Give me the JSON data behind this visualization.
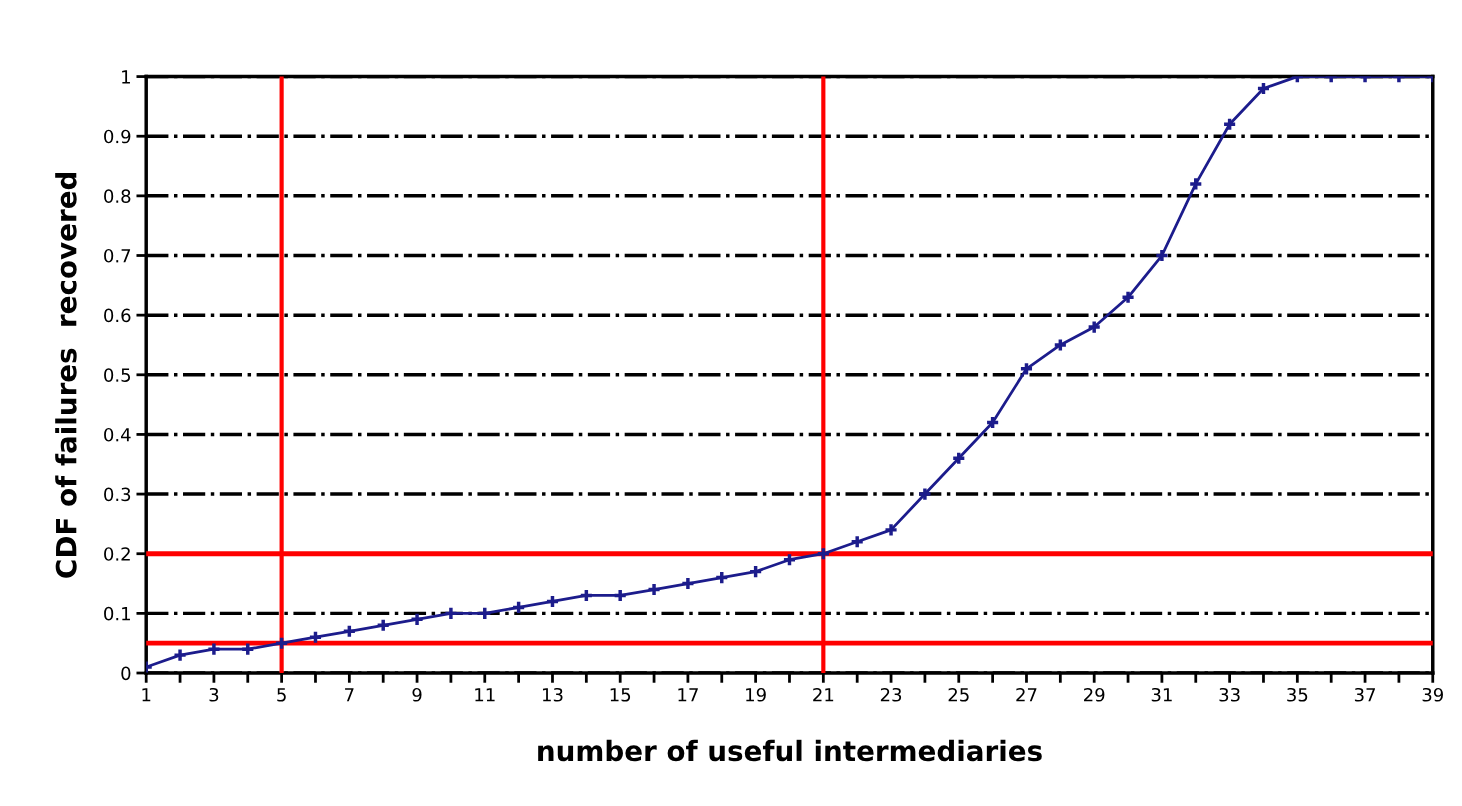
{
  "chart_data": {
    "type": "line",
    "xlabel": "number of useful intermediaries",
    "ylabel": "CDF of failures  recovered",
    "categories": [
      "1",
      null,
      "3",
      null,
      "5",
      null,
      "7",
      null,
      "9",
      null,
      "11",
      null,
      "13",
      null,
      "15",
      null,
      "17",
      null,
      "19",
      null,
      "21",
      null,
      "23",
      null,
      "25",
      null,
      "27",
      null,
      "29",
      null,
      "31",
      null,
      "33",
      null,
      "35",
      null,
      "37",
      null,
      "39"
    ],
    "series": [
      {
        "color": "#1c1c8c",
        "values": [
          0.01,
          0.03,
          0.04,
          0.04,
          0.05,
          0.06,
          0.07,
          0.08,
          0.09,
          0.1,
          0.1,
          0.11,
          0.12,
          0.13,
          0.13,
          0.14,
          0.15,
          0.16,
          0.17,
          0.19,
          0.2,
          0.22,
          0.24,
          0.3,
          0.36,
          0.42,
          0.51,
          0.55,
          0.58,
          0.63,
          0.7,
          0.82,
          0.92,
          0.98,
          1,
          1,
          1,
          1,
          1
        ]
      }
    ],
    "ylim": [
      0,
      1
    ],
    "yticks": [
      0,
      0.1,
      0.2,
      0.3,
      0.4,
      0.5,
      0.6,
      0.7,
      0.8,
      0.9,
      1
    ],
    "grid": "y",
    "marker": "cross",
    "line_style": "solid",
    "ref_lines": [
      {
        "axis": "x",
        "value": "5",
        "color": "#ff0000"
      },
      {
        "axis": "x",
        "value": "21",
        "color": "#ff0000"
      },
      {
        "axis": "y",
        "value": 0.05,
        "color": "#ff0000"
      },
      {
        "axis": "y",
        "value": 0.2,
        "color": "#ff0000"
      }
    ]
  }
}
